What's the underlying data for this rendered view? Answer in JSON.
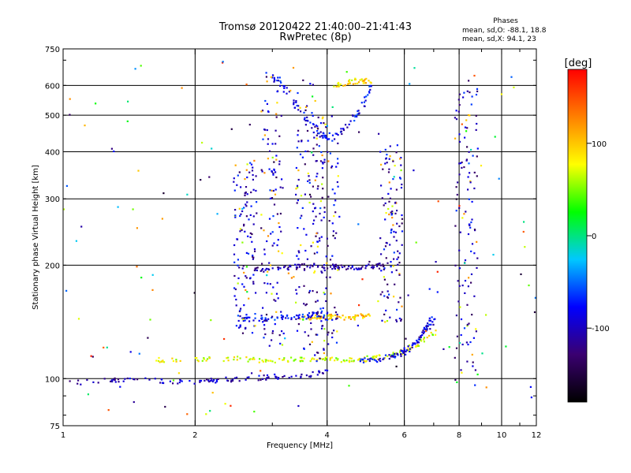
{
  "title_line1": "Tromsø 20120422 21:40:00–21:41:43",
  "title_line2": "RwPretec (8p)",
  "phases": {
    "heading": "Phases",
    "o_label": "mean, sd,O:",
    "o_mean": -88.1,
    "o_sd": 18.8,
    "x_label": "mean, sd,X:",
    "x_mean": 94.1,
    "x_sd": 23.0
  },
  "colorbar": {
    "label": "[deg]",
    "range": [
      -180,
      180
    ],
    "ticks": [
      100,
      0,
      -100
    ],
    "colors": [
      "#000000",
      "#3a0070",
      "#0000ff",
      "#00c8ff",
      "#00ff00",
      "#ffff00",
      "#ff8000",
      "#ff0000"
    ]
  },
  "chart_data": {
    "type": "scatter",
    "title": "Tromsø 20120422 21:40:00–21:41:43",
    "subtitle": "RwPretec (8p)",
    "xlabel": "Frequency [MHz]",
    "ylabel": "Stationary phase Virtual Height [km]",
    "xscale": "log",
    "yscale": "log",
    "xlim": [
      1,
      12
    ],
    "ylim": [
      75,
      750
    ],
    "xticks": [
      1,
      2,
      4,
      6,
      8,
      10,
      12
    ],
    "yticks": [
      75,
      100,
      200,
      300,
      400,
      500,
      600,
      750
    ],
    "xgrid": [
      2,
      4,
      6,
      8,
      10
    ],
    "ygrid": [
      100,
      200,
      300,
      400,
      500,
      600
    ],
    "color_variable": "phase [deg]",
    "traces": [
      {
        "x": [
          1.0,
          1.3,
          1.6,
          1.9,
          2.2,
          2.6,
          3.0,
          3.5,
          4.0
        ],
        "y": [
          97,
          99,
          99,
          98,
          99,
          100,
          101,
          102,
          104
        ],
        "phase": -100
      },
      {
        "x": [
          1.65,
          2.0,
          2.4,
          2.8,
          3.2,
          3.6,
          4.0,
          4.5,
          5.0,
          5.5,
          6.0,
          6.5,
          7.0
        ],
        "y": [
          112,
          112,
          113,
          112,
          112,
          113,
          113,
          112,
          113,
          115,
          118,
          124,
          133
        ],
        "phase": 70
      },
      {
        "x": [
          4.7,
          5.2,
          5.7,
          6.0,
          6.3,
          6.6,
          6.8,
          7.0
        ],
        "y": [
          112,
          112,
          115,
          118,
          123,
          130,
          137,
          145
        ],
        "phase": -90
      },
      {
        "x": [
          3.5,
          3.8,
          4.1,
          4.4,
          4.7,
          5.0
        ],
        "y": [
          145,
          146,
          146,
          145,
          146,
          147
        ],
        "phase": 95
      },
      {
        "x": [
          2.5,
          2.8,
          3.1,
          3.4,
          3.7,
          4.0
        ],
        "y": [
          145,
          143,
          145,
          146,
          148,
          150
        ],
        "phase": -80
      },
      {
        "x": [
          2.7,
          3.0,
          3.4,
          3.8,
          4.2,
          4.6,
          5.0,
          5.4
        ],
        "y": [
          195,
          195,
          198,
          200,
          198,
          196,
          198,
          200
        ],
        "phase": -110
      },
      {
        "x": [
          3.0,
          3.2,
          3.5,
          3.8,
          4.1,
          4.4,
          4.8,
          5.0
        ],
        "y": [
          640,
          590,
          500,
          450,
          430,
          460,
          520,
          600
        ],
        "phase": -85
      },
      {
        "x": [
          4.2,
          4.5,
          4.8,
          5.0
        ],
        "y": [
          600,
          610,
          620,
          610
        ],
        "phase": 90
      }
    ]
  }
}
